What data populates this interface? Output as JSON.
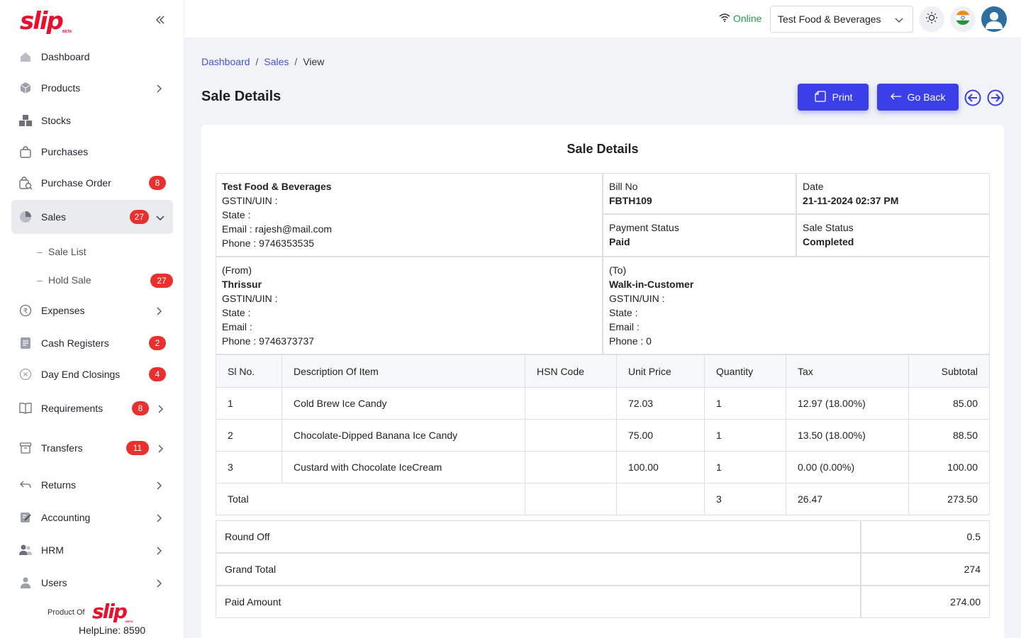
{
  "app": {
    "logo_text": "slip",
    "logo_badge": "BETA"
  },
  "sidebar": {
    "items": [
      {
        "label": "Dashboard",
        "icon": "dashboard-icon"
      },
      {
        "label": "Products",
        "icon": "cube-icon",
        "chevron": true
      },
      {
        "label": "Stocks",
        "icon": "boxes-icon"
      },
      {
        "label": "Purchases",
        "icon": "bag-icon"
      },
      {
        "label": "Purchase Order",
        "icon": "cart-search-icon",
        "badge": "8"
      },
      {
        "label": "Sales",
        "icon": "pie-chart-icon",
        "badge": "27",
        "active": true
      },
      {
        "label": "Expenses",
        "icon": "rupee-icon",
        "chevron": true
      },
      {
        "label": "Cash Registers",
        "icon": "register-icon",
        "badge": "2"
      },
      {
        "label": "Day End Closings",
        "icon": "close-circle-icon",
        "badge": "4"
      },
      {
        "label": "Requirements",
        "icon": "book-icon",
        "badge": "8",
        "chevron": true
      },
      {
        "label": "Transfers",
        "icon": "archive-icon",
        "badge": "11",
        "chevron": true
      },
      {
        "label": "Returns",
        "icon": "return-arrow-icon",
        "chevron": true
      },
      {
        "label": "Accounting",
        "icon": "ledger-icon",
        "chevron": true
      },
      {
        "label": "HRM",
        "icon": "people-icon",
        "chevron": true
      },
      {
        "label": "Users",
        "icon": "user-icon",
        "chevron": true
      }
    ],
    "sales_sub": [
      {
        "label": "Sale List"
      },
      {
        "label": "Hold Sale",
        "badge": "27"
      }
    ],
    "footer": {
      "product_of": "Product Of",
      "logo_text": "slip",
      "logo_badge": "BETA",
      "helpline": "HelpLine: 8590"
    }
  },
  "topbar": {
    "status": "Online",
    "status_color": "#1e9e4c",
    "store": "Test Food & Beverages"
  },
  "breadcrumb": {
    "items": [
      "Dashboard",
      "Sales",
      "View"
    ]
  },
  "page": {
    "title": "Sale Details",
    "print_label": "Print",
    "back_label": "Go Back",
    "accent": "#3a3fe8"
  },
  "sale": {
    "heading": "Sale Details",
    "company": {
      "name": "Test Food & Beverages",
      "gstin": "GSTIN/UIN :",
      "state": "State :",
      "email": "Email : rajesh@mail.com",
      "phone": "Phone : 9746353535"
    },
    "bill_no_label": "Bill No",
    "bill_no": "FBTH109",
    "date_label": "Date",
    "date": "21-11-2024 02:37 PM",
    "payment_status_label": "Payment Status",
    "payment_status": "Paid",
    "sale_status_label": "Sale Status",
    "sale_status": "Completed",
    "from": {
      "label": "(From)",
      "name": "Thrissur",
      "gstin": "GSTIN/UIN :",
      "state": "State :",
      "email": "Email :",
      "phone": "Phone : 9746373737"
    },
    "to": {
      "label": "(To)",
      "name": "Walk-in-Customer",
      "gstin": "GSTIN/UIN :",
      "state": "State :",
      "email": "Email :",
      "phone": "Phone : 0"
    },
    "columns": [
      "Sl No.",
      "Description Of Item",
      "HSN Code",
      "Unit Price",
      "Quantity",
      "Tax",
      "Subtotal"
    ],
    "rows": [
      {
        "sl": "1",
        "desc": "Cold Brew Ice Candy",
        "hsn": "",
        "price": "72.03",
        "qty": "1",
        "tax": "12.97 (18.00%)",
        "subtotal": "85.00"
      },
      {
        "sl": "2",
        "desc": "Chocolate-Dipped Banana Ice Candy",
        "hsn": "",
        "price": "75.00",
        "qty": "1",
        "tax": "13.50 (18.00%)",
        "subtotal": "88.50"
      },
      {
        "sl": "3",
        "desc": "Custard with Chocolate IceCream",
        "hsn": "",
        "price": "100.00",
        "qty": "1",
        "tax": "0.00 (0.00%)",
        "subtotal": "100.00"
      }
    ],
    "total": {
      "label": "Total",
      "qty": "3",
      "tax": "26.47",
      "subtotal": "273.50"
    },
    "summary": [
      {
        "label": "Round Off",
        "value": "0.5"
      },
      {
        "label": "Grand Total",
        "value": "274"
      },
      {
        "label": "Paid Amount",
        "value": "274.00"
      }
    ]
  }
}
